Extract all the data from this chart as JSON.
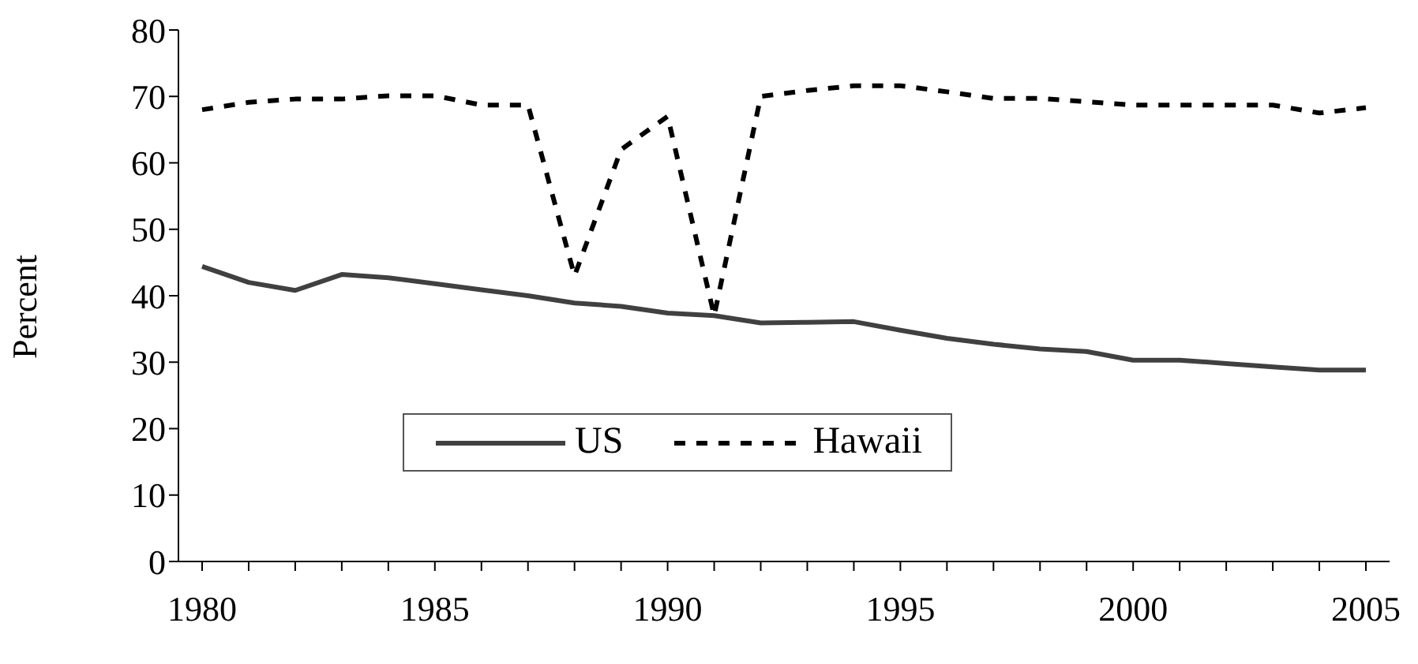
{
  "chart_data": {
    "type": "line",
    "ylabel": "Percent",
    "categories": [
      "1980",
      null,
      null,
      null,
      null,
      "1985",
      null,
      null,
      null,
      null,
      "1990",
      null,
      null,
      null,
      null,
      "1995",
      null,
      null,
      null,
      null,
      "2000",
      null,
      null,
      null,
      null,
      "2005"
    ],
    "series": [
      {
        "name": "US",
        "color": "#404040",
        "line_style": "solid",
        "values": [
          44.4,
          42.0,
          40.8,
          43.2,
          42.7,
          41.8,
          40.9,
          40.0,
          38.9,
          38.4,
          37.4,
          37.0,
          35.9,
          36.0,
          36.1,
          34.8,
          33.6,
          32.7,
          32.0,
          31.6,
          30.3,
          30.3,
          29.8,
          29.3,
          28.8,
          28.8
        ]
      },
      {
        "name": "Hawaii",
        "color": "#000000",
        "line_style": "dashed",
        "values": [
          68.0,
          69.1,
          69.6,
          69.6,
          70.1,
          70.1,
          68.7,
          68.7,
          43.0,
          62.0,
          67.0,
          37.0,
          70.0,
          70.9,
          71.6,
          71.6,
          70.7,
          69.7,
          69.7,
          69.2,
          68.7,
          68.7,
          68.7,
          68.7,
          67.5,
          68.3
        ]
      }
    ],
    "ylim": [
      0,
      80
    ],
    "yticks": [
      0,
      10,
      20,
      30,
      40,
      50,
      60,
      70,
      80
    ],
    "grid": false,
    "legend": "bottom",
    "marker": "none"
  }
}
